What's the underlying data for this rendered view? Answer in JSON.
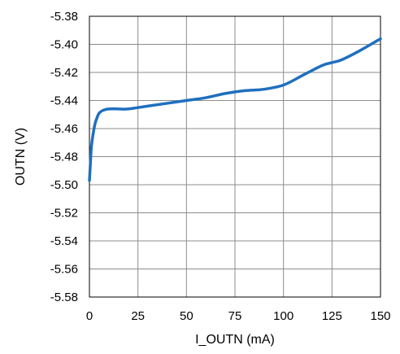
{
  "chart_data": {
    "type": "line",
    "title": "",
    "xlabel": "I_OUTN (mA)",
    "ylabel": "OUTN (V)",
    "xlim": [
      0,
      150
    ],
    "ylim": [
      -5.58,
      -5.38
    ],
    "x_ticks": [
      0,
      25,
      50,
      75,
      100,
      125,
      150
    ],
    "x_tick_labels": [
      "0",
      "25",
      "50",
      "75",
      "100",
      "125",
      "150"
    ],
    "y_ticks": [
      -5.38,
      -5.4,
      -5.42,
      -5.44,
      -5.46,
      -5.48,
      -5.5,
      -5.52,
      -5.54,
      -5.56,
      -5.58
    ],
    "y_tick_labels": [
      "-5.38",
      "-5.40",
      "-5.42",
      "-5.44",
      "-5.46",
      "-5.48",
      "-5.50",
      "-5.52",
      "-5.54",
      "-5.56",
      "-5.58"
    ],
    "grid": true,
    "legend": "none",
    "series": [
      {
        "color": "#1f6fbf",
        "x": [
          0,
          0.5,
          1,
          2,
          3,
          4,
          5,
          7,
          10,
          15,
          20,
          30,
          40,
          50,
          60,
          70,
          80,
          90,
          100,
          110,
          120,
          125,
          130,
          140,
          150
        ],
        "y": [
          -5.497,
          -5.485,
          -5.473,
          -5.463,
          -5.456,
          -5.452,
          -5.449,
          -5.447,
          -5.446,
          -5.446,
          -5.446,
          -5.444,
          -5.442,
          -5.44,
          -5.438,
          -5.435,
          -5.433,
          -5.432,
          -5.429,
          -5.422,
          -5.415,
          -5.413,
          -5.411,
          -5.404,
          -5.396
        ]
      }
    ]
  }
}
